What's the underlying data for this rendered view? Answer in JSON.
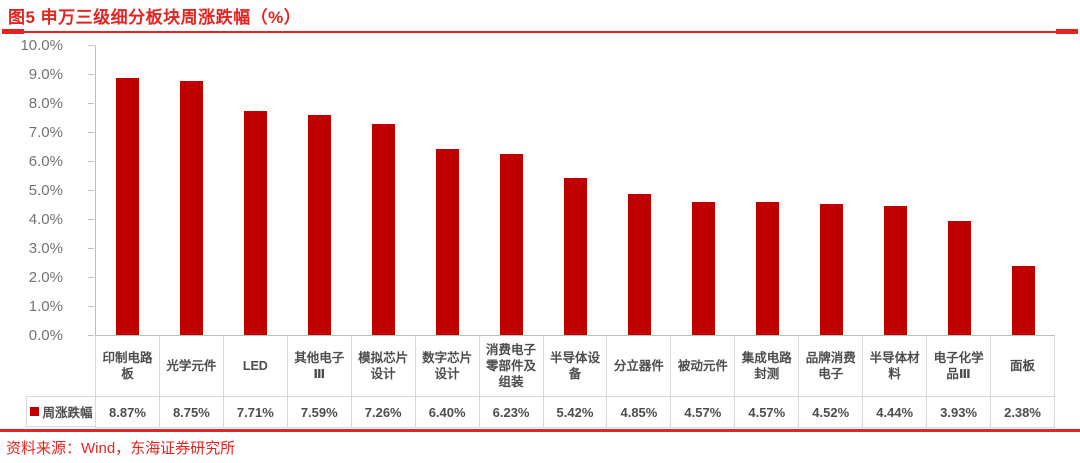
{
  "header": {
    "figure_label": "图5",
    "title": "图5  申万三级细分板块周涨跌幅（%）"
  },
  "legend": {
    "label": "周涨跌幅"
  },
  "footer": {
    "source": "资料来源：Wind，东海证券研究所"
  },
  "colors": {
    "accent_red": "#E32420",
    "bar_red": "#C00000",
    "axis_gray": "#BFBFBF",
    "label_gray": "#737373",
    "table_text_gray": "#4D4D4D",
    "table_border_gray": "#D9D9D9"
  },
  "chart_data": {
    "type": "bar",
    "title": "申万三级细分板块周涨跌幅（%）",
    "series_name": "周涨跌幅",
    "categories": [
      "印制电路板",
      "光学元件",
      "LED",
      "其他电子Ⅲ",
      "模拟芯片设计",
      "数字芯片设计",
      "消费电子零部件及组装",
      "半导体设备",
      "分立器件",
      "被动元件",
      "集成电路封测",
      "品牌消费电子",
      "半导体材料",
      "电子化学品Ⅲ",
      "面板"
    ],
    "values": [
      8.87,
      8.75,
      7.71,
      7.59,
      7.26,
      6.4,
      6.23,
      5.42,
      4.85,
      4.57,
      4.57,
      4.52,
      4.44,
      3.93,
      2.38
    ],
    "value_labels": [
      "8.87%",
      "8.75%",
      "7.71%",
      "7.59%",
      "7.26%",
      "6.40%",
      "6.23%",
      "5.42%",
      "4.85%",
      "4.57%",
      "4.57%",
      "4.52%",
      "4.44%",
      "3.93%",
      "2.38%"
    ],
    "xlabel": "",
    "ylabel": "",
    "ylim": [
      0,
      10
    ],
    "ytick_step": 1,
    "ytick_labels": [
      "10.0%",
      "9.0%",
      "8.0%",
      "7.0%",
      "6.0%",
      "5.0%",
      "4.0%",
      "3.0%",
      "2.0%",
      "1.0%",
      "0.0%"
    ],
    "grid": false,
    "legend_position": "bottom-left-table-cell"
  }
}
